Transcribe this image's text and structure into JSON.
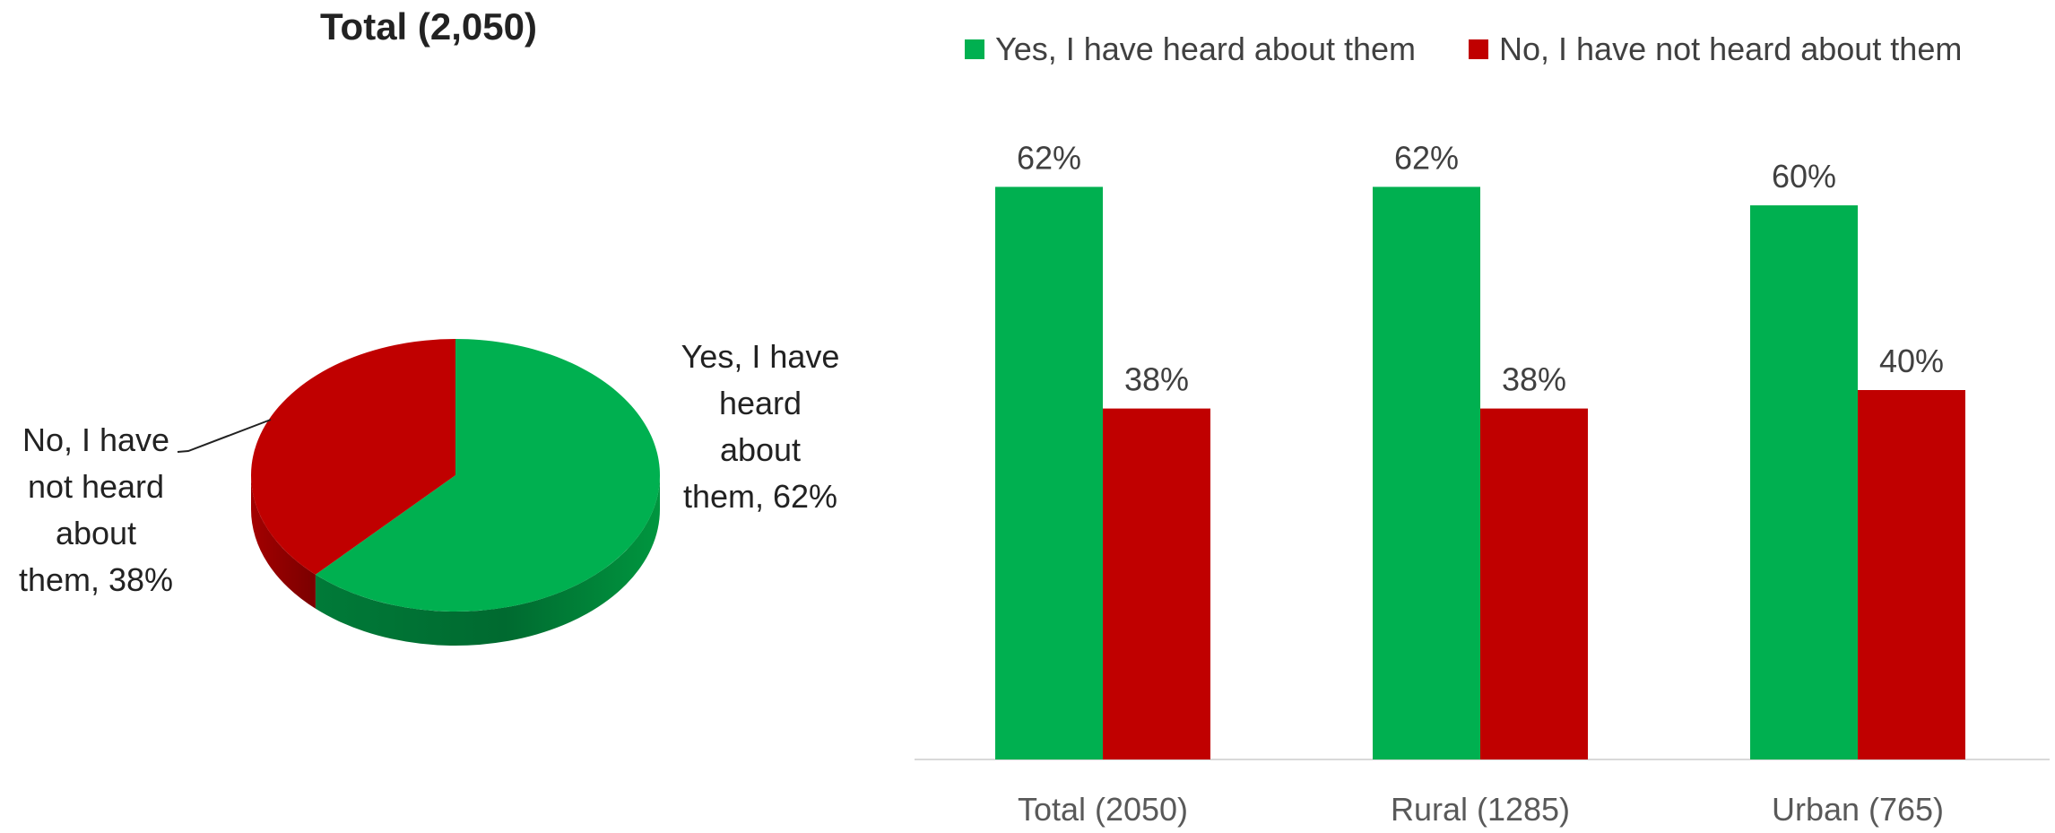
{
  "chart_data": [
    {
      "type": "pie",
      "title": "Total (2,050)",
      "slices": [
        {
          "label": "Yes, I have heard about them",
          "value": 62,
          "data_label": [
            "Yes, I have",
            "heard",
            "about",
            "them, 62%"
          ]
        },
        {
          "label": "No, I have not heard about them",
          "value": 38,
          "data_label": [
            "No, I have",
            "not heard",
            "about",
            "them, 38%"
          ]
        }
      ],
      "colors": [
        "#00B050",
        "#C00000"
      ]
    },
    {
      "type": "bar",
      "categories": [
        "Total (2050)",
        "Rural (1285)",
        "Urban (765)"
      ],
      "series": [
        {
          "name": "Yes, I have heard about them",
          "values": [
            62,
            62,
            60
          ],
          "labels": [
            "62%",
            "62%",
            "60%"
          ],
          "color": "#00B050"
        },
        {
          "name": "No, I have not heard about them",
          "values": [
            38,
            38,
            40
          ],
          "labels": [
            "38%",
            "38%",
            "40%"
          ],
          "color": "#C00000"
        }
      ],
      "legend": "top",
      "grid": false
    }
  ]
}
